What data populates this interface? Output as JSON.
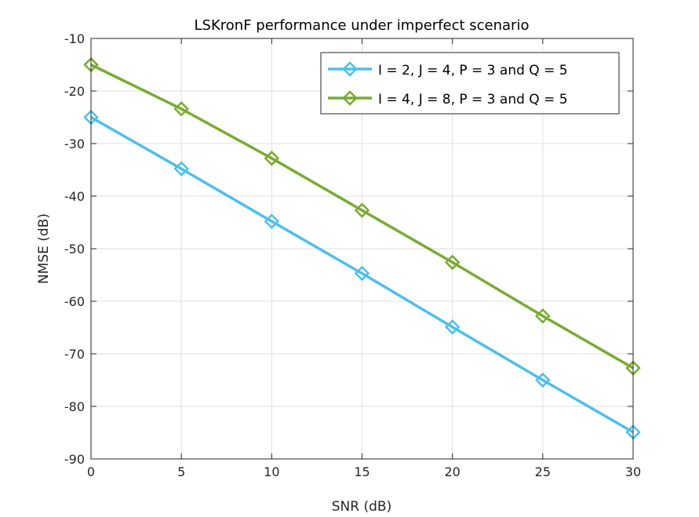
{
  "chart_data": {
    "type": "line",
    "title": "LSKronF performance under imperfect scenario",
    "xlabel": "SNR (dB)",
    "ylabel": "NMSE (dB)",
    "xlim": [
      0,
      30
    ],
    "ylim": [
      -90,
      -10
    ],
    "xticks": [
      0,
      5,
      10,
      15,
      20,
      25,
      30
    ],
    "yticks": [
      -90,
      -80,
      -70,
      -60,
      -50,
      -40,
      -30,
      -20,
      -10
    ],
    "grid": true,
    "legend_position": "top-right",
    "x": [
      0,
      5,
      10,
      15,
      20,
      25,
      30
    ],
    "series": [
      {
        "name": "I = 2, J = 4, P = 3 and Q = 5",
        "values": [
          -25,
          -34.8,
          -44.8,
          -54.7,
          -64.9,
          -75,
          -84.9
        ],
        "color": "#4DBEEE",
        "marker": "diamond"
      },
      {
        "name": "I = 4, J = 8, P = 3 and Q = 5",
        "values": [
          -15,
          -23.4,
          -32.8,
          -42.7,
          -52.6,
          -62.8,
          -72.7
        ],
        "color": "#77AC30",
        "marker": "diamond"
      }
    ]
  }
}
